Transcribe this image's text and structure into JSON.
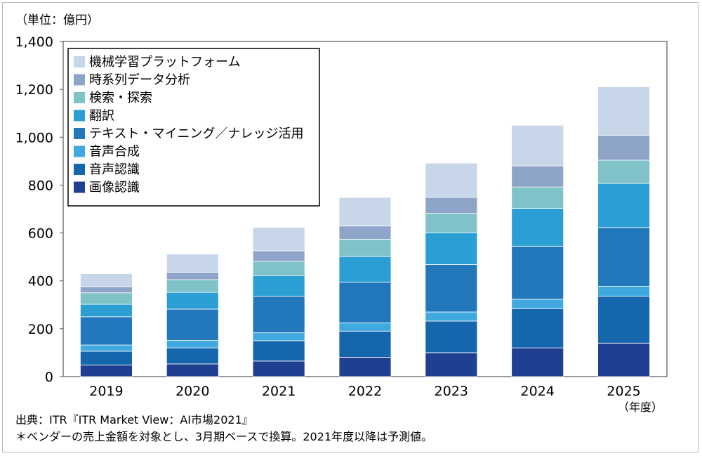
{
  "chart_data": {
    "type": "bar",
    "stacked": true,
    "unit_label": "（単位：億円）",
    "x_unit_label": "（年度）",
    "categories": [
      "2019",
      "2020",
      "2021",
      "2022",
      "2023",
      "2024",
      "2025"
    ],
    "ylim": [
      0,
      1400
    ],
    "yticks": [
      0,
      200,
      400,
      600,
      800,
      1000,
      1200,
      1400
    ],
    "ytick_labels": [
      "0",
      "200",
      "400",
      "600",
      "800",
      "1,000",
      "1,200",
      "1,400"
    ],
    "grid": false,
    "legend_position": "top-left",
    "series": [
      {
        "name": "画像認識",
        "color": "#1f3f91",
        "values": [
          48,
          53,
          65,
          81,
          100,
          120,
          140
        ]
      },
      {
        "name": "音声認識",
        "color": "#1566ad",
        "values": [
          58,
          67,
          85,
          109,
          132,
          164,
          196
        ]
      },
      {
        "name": "音声合成",
        "color": "#3fa9e0",
        "values": [
          26,
          31,
          33,
          34,
          38,
          39,
          41
        ]
      },
      {
        "name": "テキスト・マイニング／ナレッジ活用",
        "color": "#2378bc",
        "values": [
          118,
          131,
          153,
          171,
          198,
          222,
          246
        ]
      },
      {
        "name": "翻訳",
        "color": "#2b9fd4",
        "values": [
          52,
          70,
          86,
          107,
          133,
          158,
          184
        ]
      },
      {
        "name": "検索・探索",
        "color": "#7fc2c8",
        "values": [
          48,
          53,
          60,
          72,
          81,
          89,
          97
        ]
      },
      {
        "name": "時系列データ分析",
        "color": "#8ea4c8",
        "values": [
          26,
          31,
          43,
          55,
          67,
          88,
          104
        ]
      },
      {
        "name": "機械学習プラットフォーム",
        "color": "#c7d7e9",
        "values": [
          54,
          76,
          98,
          119,
          143,
          170,
          203
        ]
      }
    ]
  },
  "footer": {
    "source": "出典：ITR『ITR Market View：AI市場2021』",
    "note": "＊ベンダーの売上金額を対象とし、3月期ベースで換算。2021年度以降は予測値。"
  }
}
